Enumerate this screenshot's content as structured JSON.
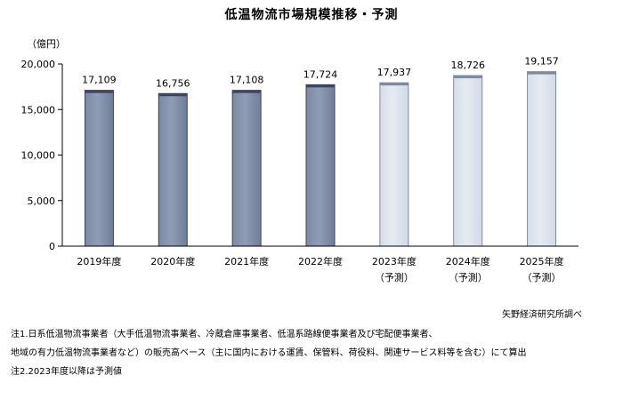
{
  "chart_data": {
    "type": "bar",
    "title": "低温物流市場規模推移・予測",
    "unit_label": "（億円）",
    "categories": [
      {
        "year": "2019年度",
        "sub": ""
      },
      {
        "year": "2020年度",
        "sub": ""
      },
      {
        "year": "2021年度",
        "sub": ""
      },
      {
        "year": "2022年度",
        "sub": ""
      },
      {
        "year": "2023年度",
        "sub": "（予測）"
      },
      {
        "year": "2024年度",
        "sub": "（予測）"
      },
      {
        "year": "2025年度",
        "sub": "（予測）"
      }
    ],
    "values": [
      17109,
      16756,
      17108,
      17724,
      17937,
      18726,
      19157
    ],
    "value_labels": [
      "17,109",
      "16,756",
      "17,108",
      "17,724",
      "17,937",
      "18,726",
      "19,157"
    ],
    "forecast": [
      false,
      false,
      false,
      false,
      true,
      true,
      true
    ],
    "ylim": [
      0,
      20000
    ],
    "yticks": [
      0,
      5000,
      10000,
      15000,
      20000
    ],
    "ytick_labels": [
      "0",
      "5,000",
      "10,000",
      "15,000",
      "20,000"
    ],
    "grid": false,
    "colors": {
      "actual_fill": "#8e9cb5",
      "actual_edge": "#3a4660",
      "forecast_fill": "#e6ebf2",
      "forecast_edge": "#7d8a9e"
    }
  },
  "source": "矢野経済研究所調べ",
  "notes": [
    "注1.日系低温物流事業者（大手低温物流事業者、冷蔵倉庫事業者、低温系路線便事業者及び宅配便事業者、",
    "地域の有力低温物流事業者など）の販売高ベース（主に国内における運賃、保管料、荷役料、関連サービス料等を含む）にて算出",
    "注2.2023年度以降は予測値"
  ]
}
